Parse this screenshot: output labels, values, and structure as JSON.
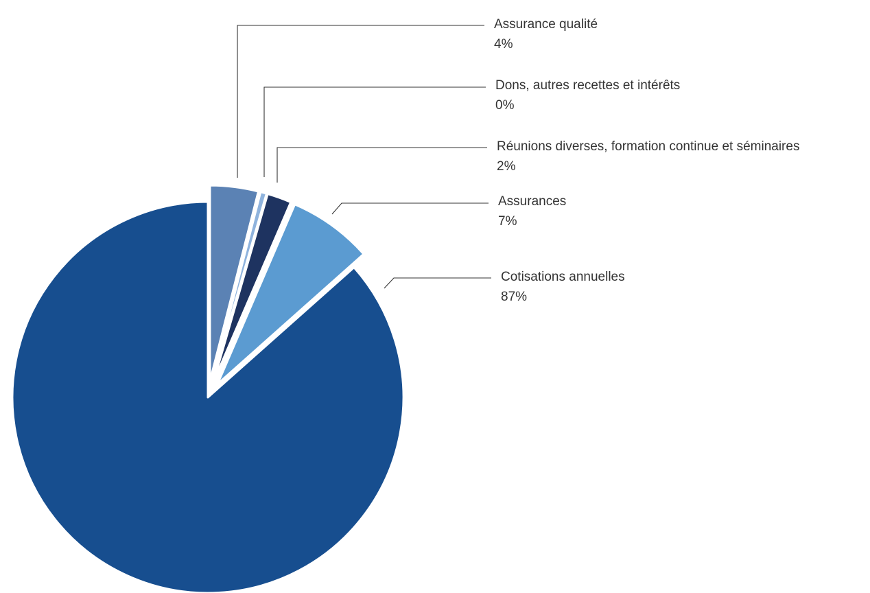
{
  "chart_data": {
    "type": "pie",
    "title": "",
    "slices": [
      {
        "label": "Assurance qualité",
        "value": 4,
        "display": "4%",
        "color": "#5b82b4",
        "exploded": true
      },
      {
        "label": "Dons, autres recettes et intérêts",
        "value": 0.5,
        "display": "0%",
        "color": "#8fb3dd",
        "exploded": true
      },
      {
        "label": "Réunions diverses, formation continue et séminaires",
        "value": 2,
        "display": "2%",
        "color": "#1e3360",
        "exploded": true
      },
      {
        "label": "Assurances",
        "value": 7,
        "display": "7%",
        "color": "#5b9bd1",
        "exploded": true
      },
      {
        "label": "Cotisations annuelles",
        "value": 87,
        "display": "87%",
        "color": "#174e8f",
        "exploded": false
      }
    ]
  }
}
